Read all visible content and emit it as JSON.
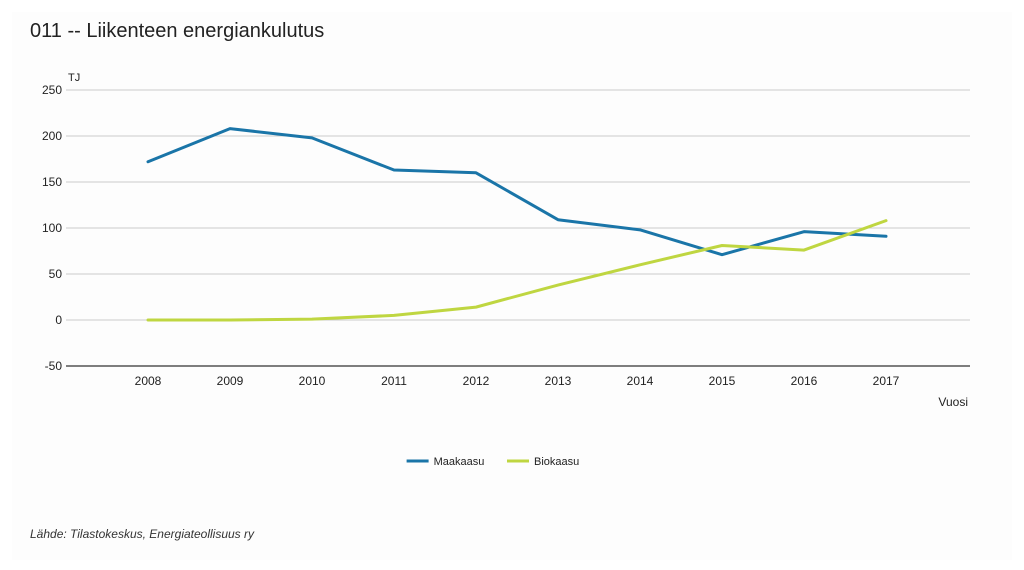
{
  "chart_data": {
    "type": "line",
    "title": "011 -- Liikenteen energiankulutus",
    "ylabel": "TJ",
    "xlabel": "Vuosi",
    "categories": [
      "2008",
      "2009",
      "2010",
      "2011",
      "2012",
      "2013",
      "2014",
      "2015",
      "2016",
      "2017"
    ],
    "ylim": [
      -50,
      250
    ],
    "yticks": [
      250,
      200,
      150,
      100,
      50,
      0,
      -50
    ],
    "grid": true,
    "legend_position": "bottom-center",
    "series": [
      {
        "name": "Maakaasu",
        "color": "#1a75a8",
        "values": [
          172,
          208,
          198,
          163,
          160,
          109,
          98,
          71,
          96,
          91
        ]
      },
      {
        "name": "Biokaasu",
        "color": "#bfd641",
        "values": [
          0,
          0,
          1,
          5,
          14,
          38,
          60,
          81,
          76,
          108
        ]
      }
    ]
  },
  "source": "Lähde: Tilastokeskus, Energiateollisuus ry"
}
